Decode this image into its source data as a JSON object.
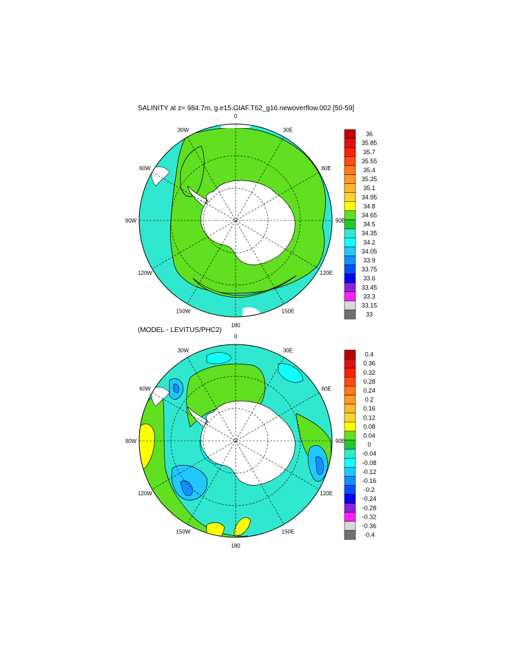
{
  "panels": [
    {
      "title": "SALINITY at z= 984.7m, g.e15.GIAF.T62_g16.newoverflow.002 [50-59]",
      "lon_labels": [
        "0",
        "30E",
        "60E",
        "90E",
        "120E",
        "150E",
        "180",
        "150W",
        "120W",
        "90W",
        "60W",
        "30W"
      ],
      "colorbar": {
        "labels": [
          "36",
          "35.85",
          "35.7",
          "35.55",
          "35.4",
          "35.25",
          "35.1",
          "34.95",
          "34.8",
          "34.65",
          "34.5",
          "34.35",
          "34.2",
          "34.05",
          "33.9",
          "33.75",
          "33.6",
          "33.45",
          "33.3",
          "33.15",
          "33"
        ],
        "colors": [
          "#c00000",
          "#e01010",
          "#ff2000",
          "#ff4a10",
          "#ff7a18",
          "#ff9a28",
          "#ffb830",
          "#ffd530",
          "#ffff00",
          "#60e020",
          "#22c830",
          "#30e8d0",
          "#10ffff",
          "#20c8ff",
          "#1090ff",
          "#0050ff",
          "#0000ff",
          "#9020e0",
          "#ff20ff",
          "#d8d8d8",
          "#707070"
        ]
      }
    },
    {
      "title": "(MODEL - LEVITUS/PHC2)",
      "lon_labels": [
        "0",
        "30E",
        "60E",
        "90E",
        "120E",
        "150E",
        "180",
        "150W",
        "120W",
        "90W",
        "60W",
        "30W"
      ],
      "colorbar": {
        "labels": [
          "0.4",
          "0.36",
          "0.32",
          "0.28",
          "0.24",
          "0.2",
          "0.16",
          "0.12",
          "0.08",
          "0.04",
          "0",
          "-0.04",
          "-0.08",
          "-0.12",
          "-0.16",
          "-0.2",
          "-0.24",
          "-0.28",
          "-0.32",
          "-0.36",
          "-0.4"
        ],
        "colors": [
          "#c00000",
          "#e01010",
          "#ff2000",
          "#ff4a10",
          "#ff7a18",
          "#ff9a28",
          "#ffb830",
          "#ffd530",
          "#ffff00",
          "#60e020",
          "#22c830",
          "#30e8d0",
          "#10ffff",
          "#20c8ff",
          "#1090ff",
          "#0050ff",
          "#0000ff",
          "#9020e0",
          "#ff20ff",
          "#d8d8d8",
          "#707070"
        ]
      }
    }
  ]
}
